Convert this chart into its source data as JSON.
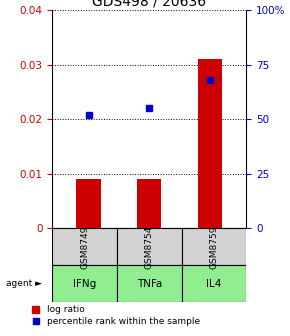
{
  "title": "GDS498 / 20636",
  "samples": [
    "GSM8749",
    "GSM8754",
    "GSM8759"
  ],
  "agents": [
    "IFNg",
    "TNFa",
    "IL4"
  ],
  "log_ratio": [
    0.009,
    0.009,
    0.031
  ],
  "percentile_rank": [
    52,
    55,
    68
  ],
  "left_ylim": [
    0,
    0.04
  ],
  "right_ylim": [
    0,
    100
  ],
  "left_yticks": [
    0,
    0.01,
    0.02,
    0.03,
    0.04
  ],
  "right_ytick_vals": [
    0,
    25,
    50,
    75,
    100
  ],
  "right_ytick_labels": [
    "0",
    "25",
    "50",
    "75",
    "100%"
  ],
  "bar_color": "#cc0000",
  "dot_color": "#0000cc",
  "bar_width": 0.4,
  "sample_box_color": "#d3d3d3",
  "agent_box_color": "#90ee90",
  "title_fontsize": 10,
  "legend_fontsize": 6.5,
  "tick_fontsize": 7.5,
  "agent_label": "agent"
}
